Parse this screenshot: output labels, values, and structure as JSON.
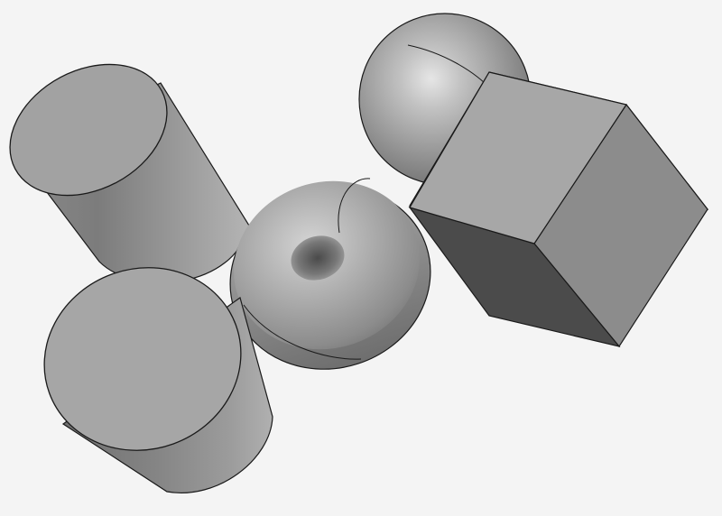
{
  "scene": {
    "background_color": "#f4f4f4",
    "edge_color": "#1a1a1a",
    "objects": [
      {
        "id": "cylinder-upper",
        "shape": "cylinder"
      },
      {
        "id": "sphere",
        "shape": "sphere"
      },
      {
        "id": "torus",
        "shape": "torus"
      },
      {
        "id": "cube",
        "shape": "cube"
      },
      {
        "id": "truncated-cone",
        "shape": "cone"
      }
    ]
  }
}
